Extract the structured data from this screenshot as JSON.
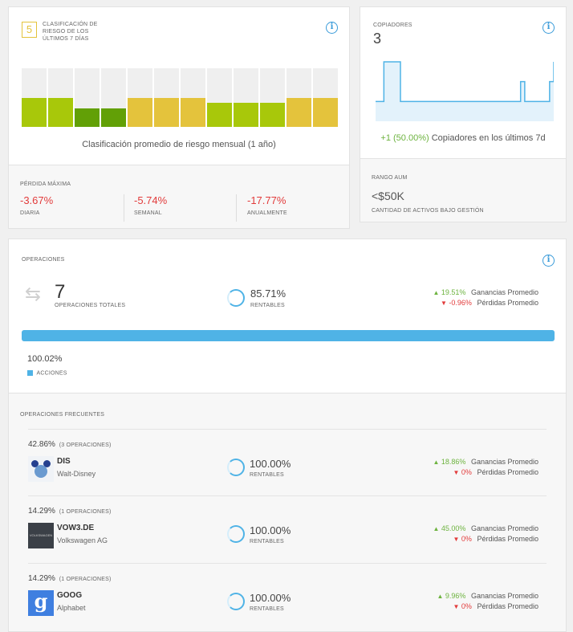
{
  "risk": {
    "score": "5",
    "title": "Clasificación de riesgo de los últimos 7 días",
    "monthly_label": "Clasificación promedio de riesgo mensual (1 año)",
    "levels": [
      0.5,
      0.5,
      0.32,
      0.32,
      0.5,
      0.5,
      0.5,
      0.41,
      0.41,
      0.41,
      0.5,
      0.5
    ],
    "bar_colors": [
      "#a8c80a",
      "#a8c80a",
      "#62a006",
      "#62a006",
      "#e4c33c",
      "#e4c33c",
      "#e4c33c",
      "#a8c80a",
      "#a8c80a",
      "#a8c80a",
      "#e4c33c",
      "#e4c33c"
    ]
  },
  "drawdown": {
    "title": "Pérdida máxima",
    "items": [
      {
        "value": "-3.67%",
        "label": "Diaria"
      },
      {
        "value": "-5.74%",
        "label": "Semanal"
      },
      {
        "value": "-17.77%",
        "label": "Anualmente"
      }
    ]
  },
  "copiers": {
    "title": "Copiadores",
    "count": "3",
    "change": "+1 (50.00%)",
    "change_label": "Copiadores en los últimos 7d",
    "series": [
      1,
      1,
      3,
      3,
      3,
      3,
      1,
      1,
      1,
      1,
      1,
      1,
      1,
      1,
      1,
      1,
      1,
      1,
      1,
      1,
      1,
      1,
      1,
      1,
      1,
      1,
      1,
      1,
      1,
      1,
      1,
      1,
      1,
      1,
      1,
      2,
      1,
      1,
      1,
      1,
      1,
      1,
      2,
      3
    ]
  },
  "aum": {
    "title": "Rango AUM",
    "value": "<$50K",
    "subtitle": "Cantidad de activos bajo gestión"
  },
  "operations": {
    "title": "Operaciones",
    "total": "7",
    "total_label": "Operaciones totales",
    "profitable_pct": "85.71%",
    "profitable_label": "Rentables",
    "avg_gain": "19.51%",
    "avg_gain_label": "Ganancias Promedio",
    "avg_loss": "-0.96%",
    "avg_loss_label": "Pérdidas Promedio",
    "shares_pct": "100.02%",
    "shares_label": "Acciones",
    "shares_fill": 1.0,
    "bar_color": "#4fb3e6"
  },
  "frequent": {
    "title": "Operaciones frecuentes",
    "items": [
      {
        "pct": "42.86%",
        "ops": "(3 operaciones)",
        "ticker": "DIS",
        "name": "Walt-Disney",
        "profitable": "100.00%",
        "profitable_label": "Rentables",
        "gain": "18.86%",
        "gain_label": "Ganancias Promedio",
        "loss": "0%",
        "loss_label": "Pérdidas Promedio",
        "logo": "disney-logo"
      },
      {
        "pct": "14.29%",
        "ops": "(1 operaciones)",
        "ticker": "VOW3.DE",
        "name": "Volkswagen AG",
        "profitable": "100.00%",
        "profitable_label": "Rentables",
        "gain": "45.00%",
        "gain_label": "Ganancias Promedio",
        "loss": "0%",
        "loss_label": "Pérdidas Promedio",
        "logo": "volkswagen-logo",
        "logo_text": "VOLKSWAGEN"
      },
      {
        "pct": "14.29%",
        "ops": "(1 operaciones)",
        "ticker": "GOOG",
        "name": "Alphabet",
        "profitable": "100.00%",
        "profitable_label": "Rentables",
        "gain": "9.96%",
        "gain_label": "Ganancias Promedio",
        "loss": "0%",
        "loss_label": "Pérdidas Promedio",
        "logo": "google-logo",
        "logo_text": "g"
      }
    ]
  }
}
